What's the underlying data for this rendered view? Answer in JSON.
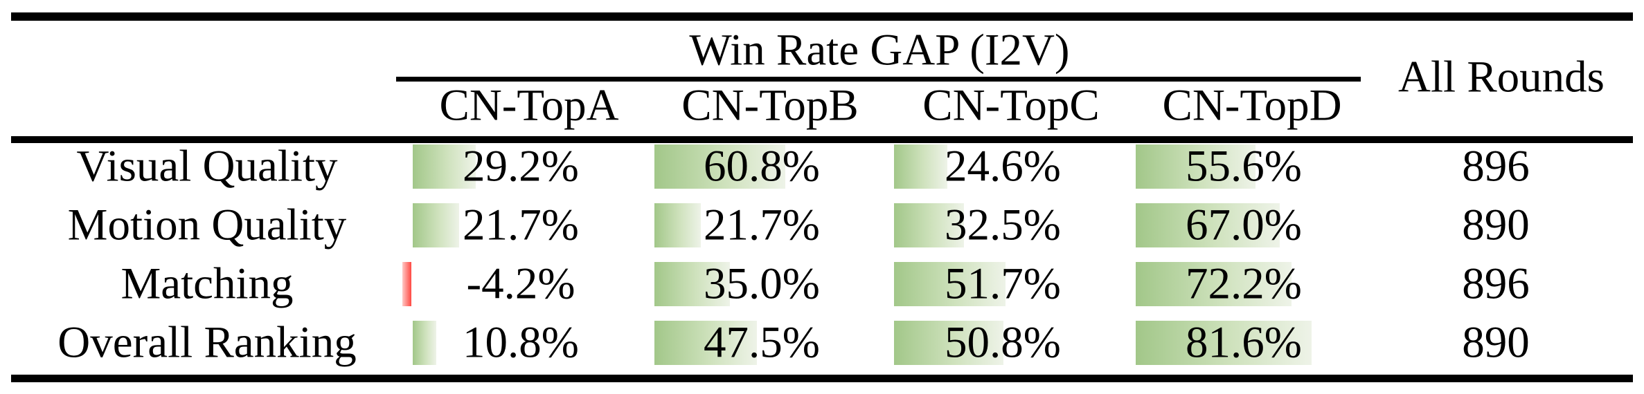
{
  "table": {
    "group_header": "Win Rate GAP (I2V)",
    "all_rounds_header": "All Rounds",
    "columns": [
      "CN-TopA",
      "CN-TopB",
      "CN-TopC",
      "CN-TopD"
    ],
    "rows": [
      {
        "label": "Visual Quality",
        "values": [
          29.2,
          60.8,
          24.6,
          55.6
        ],
        "display": [
          "29.2%",
          "60.8%",
          "24.6%",
          "55.6%"
        ],
        "all_rounds": "896"
      },
      {
        "label": "Motion Quality",
        "values": [
          21.7,
          21.7,
          32.5,
          67.0
        ],
        "display": [
          "21.7%",
          "21.7%",
          "32.5%",
          "67.0%"
        ],
        "all_rounds": "890"
      },
      {
        "label": "Matching",
        "values": [
          -4.2,
          35.0,
          51.7,
          72.2
        ],
        "display": [
          "-4.2%",
          "35.0%",
          "51.7%",
          "72.2%"
        ],
        "all_rounds": "896"
      },
      {
        "label": "Overall Ranking",
        "values": [
          10.8,
          47.5,
          50.8,
          81.6
        ],
        "display": [
          "10.8%",
          "47.5%",
          "50.8%",
          "81.6%"
        ],
        "all_rounds": "890"
      }
    ],
    "colors": {
      "positive_bar_start": "#a2c789",
      "positive_bar_end": "#eef3e8",
      "negative_bar_start": "#ff4842",
      "negative_bar_end": "#ffc9c5",
      "rule": "#000000",
      "text": "#000000",
      "background": "#ffffff"
    }
  },
  "chart_data": {
    "type": "table",
    "title": "Win Rate GAP (I2V)",
    "row_labels": [
      "Visual Quality",
      "Motion Quality",
      "Matching",
      "Overall Ranking"
    ],
    "series": [
      {
        "name": "CN-TopA",
        "values": [
          29.2,
          21.7,
          -4.2,
          10.8
        ]
      },
      {
        "name": "CN-TopB",
        "values": [
          60.8,
          21.7,
          35.0,
          47.5
        ]
      },
      {
        "name": "CN-TopC",
        "values": [
          24.6,
          32.5,
          51.7,
          50.8
        ]
      },
      {
        "name": "CN-TopD",
        "values": [
          55.6,
          67.0,
          72.2,
          81.6
        ]
      },
      {
        "name": "All Rounds",
        "values": [
          896,
          890,
          896,
          890
        ]
      }
    ],
    "value_unit": "%",
    "notes": "In-cell gradient data bars; green for positive values, red for negative; bar length proportional to value (100% ~= full column width)"
  }
}
